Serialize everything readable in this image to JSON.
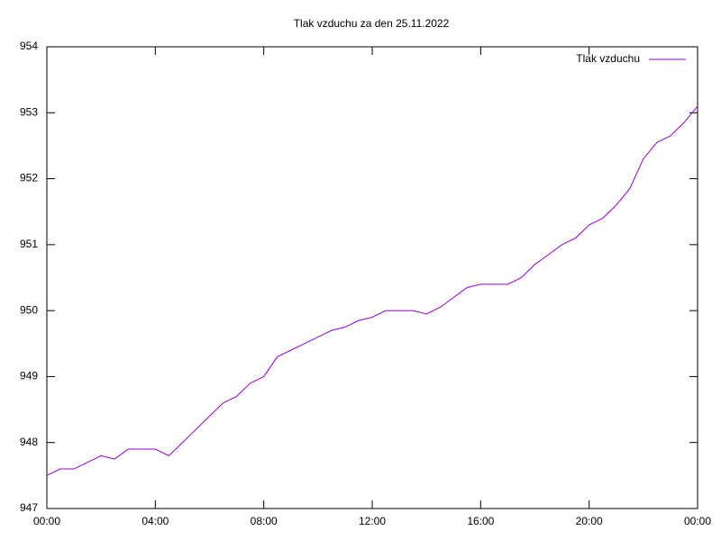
{
  "chart_data": {
    "type": "line",
    "title": "Tlak vzduchu za den 25.11.2022",
    "x": [
      0,
      0.5,
      1,
      1.5,
      2,
      2.5,
      3,
      3.5,
      4,
      4.5,
      5,
      5.5,
      6,
      6.5,
      7,
      7.5,
      8,
      8.5,
      9,
      9.5,
      10,
      10.5,
      11,
      11.5,
      12,
      12.5,
      13,
      13.5,
      14,
      14.5,
      15,
      15.5,
      16,
      16.5,
      17,
      17.5,
      18,
      18.5,
      19,
      19.5,
      20,
      20.5,
      21,
      21.5,
      22,
      22.5,
      23,
      23.5,
      24
    ],
    "series": [
      {
        "name": "Tlak vzduchu",
        "color": "#9400d3",
        "values": [
          947.5,
          947.6,
          947.6,
          947.7,
          947.8,
          947.75,
          947.9,
          947.9,
          947.9,
          947.8,
          948.0,
          948.2,
          948.4,
          948.6,
          948.7,
          948.9,
          949.0,
          949.3,
          949.4,
          949.5,
          949.6,
          949.7,
          949.75,
          949.85,
          949.9,
          950.0,
          950.0,
          950.0,
          949.95,
          950.05,
          950.2,
          950.35,
          950.4,
          950.4,
          950.4,
          950.5,
          950.7,
          950.85,
          951.0,
          951.1,
          951.3,
          951.4,
          951.6,
          951.85,
          952.3,
          952.55,
          952.65,
          952.85,
          953.1
        ]
      }
    ],
    "xlim": [
      0,
      24
    ],
    "xticks": [
      {
        "value": 0,
        "label": "00:00"
      },
      {
        "value": 4,
        "label": "04:00"
      },
      {
        "value": 8,
        "label": "08:00"
      },
      {
        "value": 12,
        "label": "12:00"
      },
      {
        "value": 16,
        "label": "16:00"
      },
      {
        "value": 20,
        "label": "20:00"
      },
      {
        "value": 24,
        "label": "00:00"
      }
    ],
    "ylim": [
      947,
      954
    ],
    "yticks": [
      947,
      948,
      949,
      950,
      951,
      952,
      953,
      954
    ],
    "legend": "top-right"
  }
}
